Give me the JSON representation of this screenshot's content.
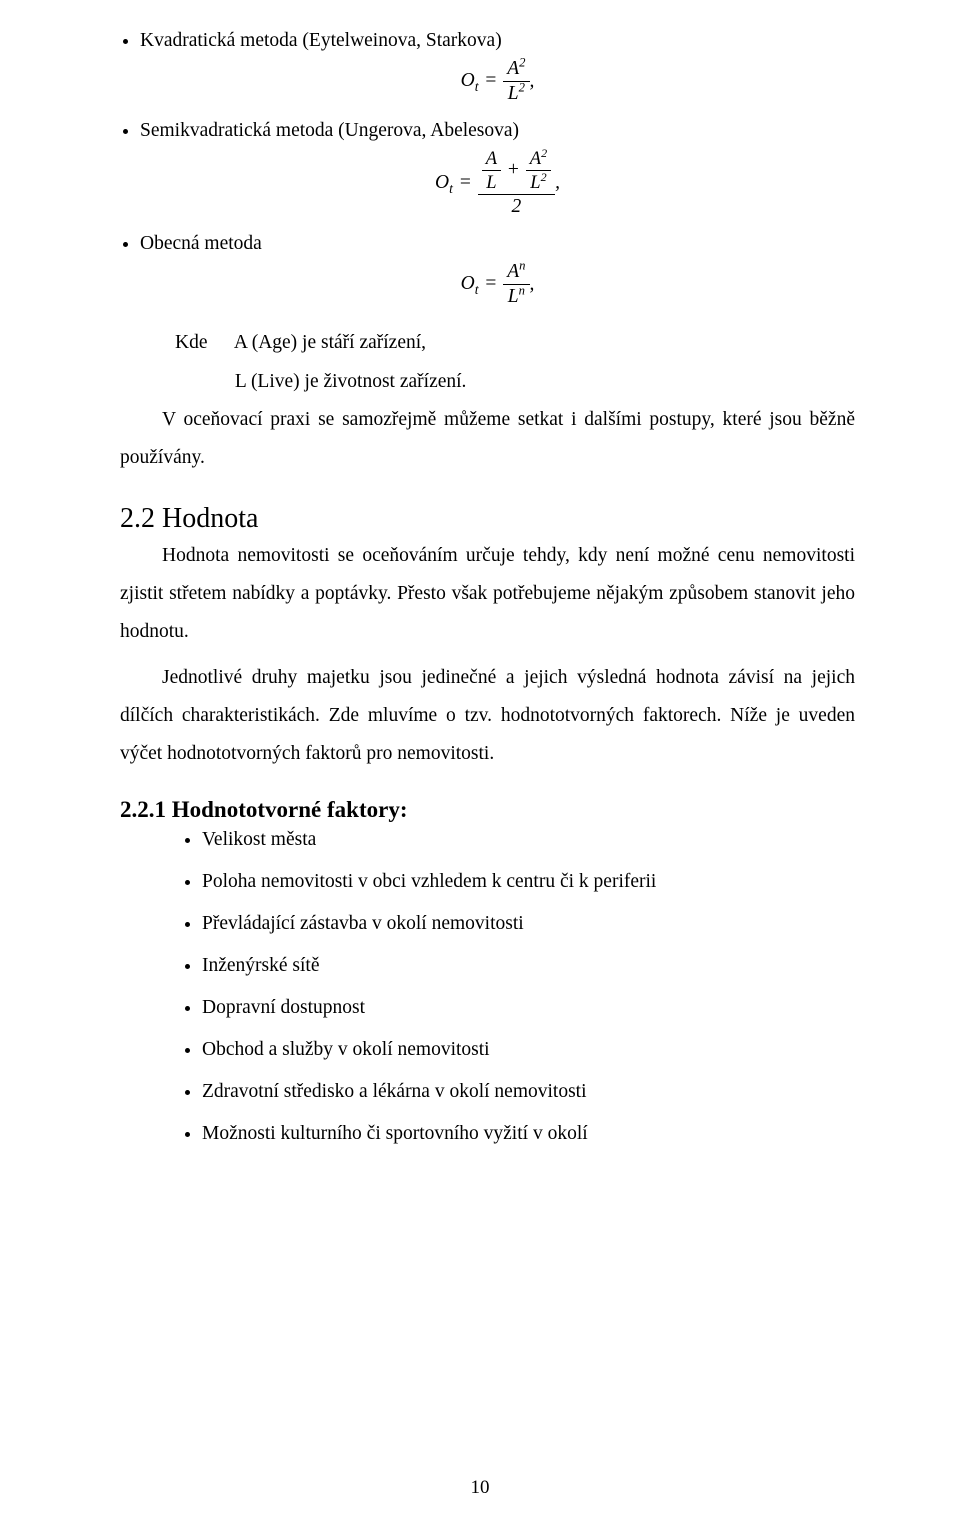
{
  "bullets_top": [
    {
      "text": "Kvadratická metoda (Eytelweinova, Starkova)"
    },
    {
      "text": "Semikvadratická metoda (Ungerova, Abelesova)"
    },
    {
      "text": "Obecná metoda"
    }
  ],
  "formulas": {
    "f1": {
      "lhs": "O",
      "lhs_sub": "t",
      "eq": "=",
      "num": "A",
      "num_sup": "2",
      "den": "L",
      "den_sup": "2",
      "comma": ","
    },
    "f2": {
      "lhs": "O",
      "lhs_sub": "t",
      "eq": "=",
      "top_l": "A",
      "top_l_den": "L",
      "plus": "+",
      "top_r": "A",
      "top_r_sup": "2",
      "top_r_den": "L",
      "top_r_den_sup": "2",
      "big_den": "2",
      "comma": ","
    },
    "f3": {
      "lhs": "O",
      "lhs_sub": "t",
      "eq": "=",
      "num": "A",
      "num_sup": "n",
      "den": "L",
      "den_sup": "n",
      "comma": ","
    }
  },
  "kde": {
    "label": "Kde",
    "line1": "A (Age) je stáří zařízení,",
    "line2": "L (Live) je životnost zařízení."
  },
  "para_used": "V oceňovací praxi se samozřejmě můžeme setkat i dalšími postupy, které jsou běžně používány.",
  "section_22": "2.2 Hodnota",
  "para_22a": "Hodnota nemovitosti se oceňováním určuje tehdy, kdy není možné cenu nemovitosti zjistit střetem nabídky a poptávky. Přesto však potřebujeme nějakým způsobem stanovit jeho hodnotu.",
  "para_22b": "Jednotlivé druhy majetku jsou jedinečné a jejich výsledná hodnota závisí na jejich dílčích charakteristikách. Zde mluvíme o tzv. hodnototvorných faktorech. Níže je uveden výčet hodnototvorných faktorů pro nemovitosti.",
  "subsection_221": "2.2.1 Hodnototvorné faktory:",
  "factors": [
    "Velikost města",
    "Poloha nemovitosti v obci vzhledem k centru či k periferii",
    "Převládající zástavba v okolí nemovitosti",
    "Inženýrské sítě",
    "Dopravní dostupnost",
    "Obchod a služby v okolí nemovitosti",
    "Zdravotní středisko a lékárna v okolí nemovitosti",
    "Možnosti kulturního či sportovního vyžití v okolí"
  ],
  "page_number": "10"
}
